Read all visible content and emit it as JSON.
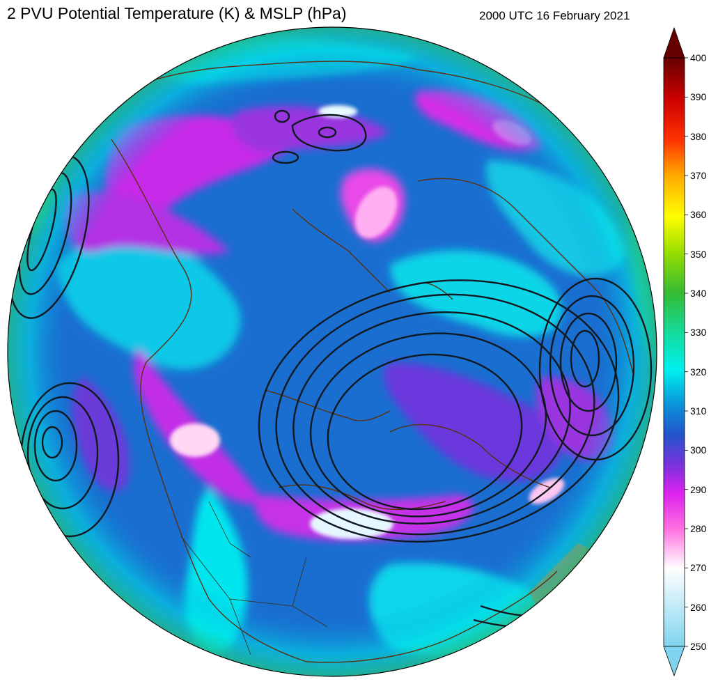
{
  "title": "2 PVU Potential Temperature (K) & MSLP (hPa)",
  "timestamp": "2000 UTC 16 February 2021",
  "map": {
    "projection": "orthographic",
    "fields": [
      "2 PVU Potential Temperature (K)",
      "MSLP (hPa)"
    ]
  },
  "colorbar": {
    "min": 250,
    "max": 400,
    "ticks": [
      "400",
      "390",
      "380",
      "370",
      "360",
      "350",
      "340",
      "330",
      "320",
      "310",
      "300",
      "290",
      "280",
      "270",
      "260",
      "250"
    ],
    "colors": [
      "#7fd3ee",
      "#ffffff",
      "#ff6fe0",
      "#dd22ee",
      "#7733dd",
      "#2255cc",
      "#0a92d8",
      "#00f0ee",
      "#12dca0",
      "#33bb33",
      "#99dd00",
      "#ffff00",
      "#ffaa00",
      "#ff3300",
      "#cc0000",
      "#660000"
    ],
    "extend": "both"
  }
}
